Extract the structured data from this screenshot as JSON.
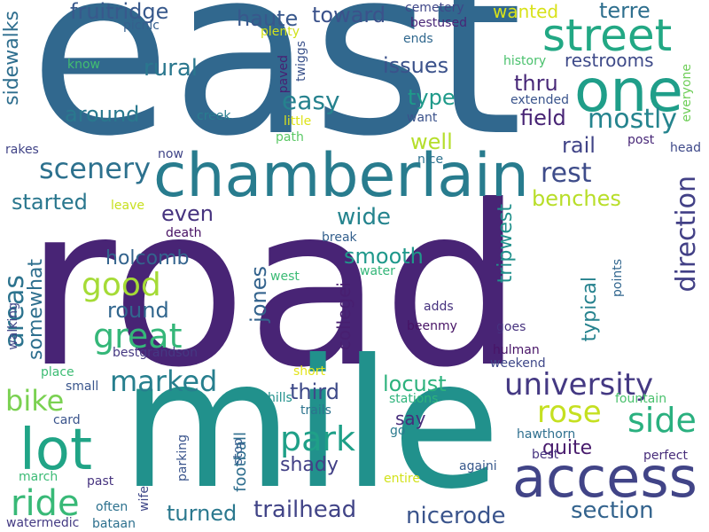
{
  "words": [
    {
      "text": "road",
      "color": "#482475"
    },
    {
      "text": "east",
      "color": "#31688e"
    },
    {
      "text": "mile",
      "color": "#21918c"
    },
    {
      "text": "chamberlain",
      "color": "#287c8e"
    },
    {
      "text": "access",
      "color": "#414487"
    },
    {
      "text": "one",
      "color": "#1f9e89"
    },
    {
      "text": "street",
      "color": "#22a884"
    },
    {
      "text": "lot",
      "color": "#20a486"
    },
    {
      "text": "university",
      "color": "#443983"
    },
    {
      "text": "great",
      "color": "#35b779"
    },
    {
      "text": "good",
      "color": "#a5db36"
    },
    {
      "text": "park",
      "color": "#1fa088"
    },
    {
      "text": "ride",
      "color": "#38b977"
    },
    {
      "text": "side",
      "color": "#2ab07f"
    },
    {
      "text": "rose",
      "color": "#c5e021"
    },
    {
      "text": "scenery",
      "color": "#2d718e"
    },
    {
      "text": "marked",
      "color": "#277f8e"
    },
    {
      "text": "mostly",
      "color": "#25848e"
    },
    {
      "text": "rest",
      "color": "#3e4c8a"
    },
    {
      "text": "bike",
      "color": "#7ad151"
    },
    {
      "text": "areas",
      "color": "#2c738e"
    },
    {
      "text": "direction",
      "color": "#424086"
    },
    {
      "text": "section",
      "color": "#33638d"
    },
    {
      "text": "nicerode",
      "color": "#3a548c"
    },
    {
      "text": "trailhead",
      "color": "#414487"
    },
    {
      "text": "fruitridge",
      "color": "#38598c"
    },
    {
      "text": "haute",
      "color": "#38588c"
    },
    {
      "text": "toward",
      "color": "#3b528b"
    },
    {
      "text": "terre",
      "color": "#2e6f8e"
    },
    {
      "text": "wanted",
      "color": "#d8e219"
    },
    {
      "text": "rural",
      "color": "#2a778e"
    },
    {
      "text": "issues",
      "color": "#3b528b"
    },
    {
      "text": "restrooms",
      "color": "#3e4a89"
    },
    {
      "text": "easy",
      "color": "#26828e"
    },
    {
      "text": "type",
      "color": "#1f9a8a"
    },
    {
      "text": "thru",
      "color": "#482878"
    },
    {
      "text": "field",
      "color": "#482475"
    },
    {
      "text": "around",
      "color": "#2a788e"
    },
    {
      "text": "rail",
      "color": "#414487"
    },
    {
      "text": "well",
      "color": "#b5de2b"
    },
    {
      "text": "benches",
      "color": "#b8de29"
    },
    {
      "text": "wide",
      "color": "#25848e"
    },
    {
      "text": "started",
      "color": "#2a778e"
    },
    {
      "text": "even",
      "color": "#46337f"
    },
    {
      "text": "smooth",
      "color": "#1f988b"
    },
    {
      "text": "holcomb",
      "color": "#33638d"
    },
    {
      "text": "round",
      "color": "#31668e"
    },
    {
      "text": "jones",
      "color": "#33638d"
    },
    {
      "text": "sidewalks",
      "color": "#2e6e8e"
    },
    {
      "text": "somewhat",
      "color": "#2e6f8e"
    },
    {
      "text": "tripwest",
      "color": "#21918c"
    },
    {
      "text": "typical",
      "color": "#26828e"
    },
    {
      "text": "collegei",
      "color": "#481f70"
    },
    {
      "text": "third",
      "color": "#3e4a89"
    },
    {
      "text": "locust",
      "color": "#2db27d"
    },
    {
      "text": "say",
      "color": "#472d7b"
    },
    {
      "text": "quite",
      "color": "#481b6d"
    },
    {
      "text": "shady",
      "color": "#424086"
    },
    {
      "text": "football",
      "color": "#2e6e8e"
    },
    {
      "text": "turned",
      "color": "#2a788e"
    },
    {
      "text": "picnic",
      "color": "#355f8d"
    },
    {
      "text": "plenty",
      "color": "#d0e11c"
    },
    {
      "text": "twiggs",
      "color": "#3b528b"
    },
    {
      "text": "paved",
      "color": "#482173"
    },
    {
      "text": "cemetery",
      "color": "#3f4788"
    },
    {
      "text": "bestused",
      "color": "#482677"
    },
    {
      "text": "ends",
      "color": "#30688e"
    },
    {
      "text": "history",
      "color": "#4ac16d"
    },
    {
      "text": "everyone",
      "color": "#6ece58"
    },
    {
      "text": "know",
      "color": "#42be71"
    },
    {
      "text": "creek",
      "color": "#287d8e"
    },
    {
      "text": "little",
      "color": "#dde318"
    },
    {
      "text": "want",
      "color": "#3b528b"
    },
    {
      "text": "extended",
      "color": "#3a548c"
    },
    {
      "text": "path",
      "color": "#5ac864"
    },
    {
      "text": "post",
      "color": "#482878"
    },
    {
      "text": "head",
      "color": "#3e4989"
    },
    {
      "text": "nice",
      "color": "#2d718e"
    },
    {
      "text": "now",
      "color": "#404588"
    },
    {
      "text": "rakes",
      "color": "#414487"
    },
    {
      "text": "leave",
      "color": "#c8e020"
    },
    {
      "text": "death",
      "color": "#471063"
    },
    {
      "text": "break",
      "color": "#34608d"
    },
    {
      "text": "water",
      "color": "#34b679"
    },
    {
      "text": "west",
      "color": "#3bbb75"
    },
    {
      "text": "points",
      "color": "#31668e"
    },
    {
      "text": "walking",
      "color": "#404688"
    },
    {
      "text": "adds",
      "color": "#46327e"
    },
    {
      "text": "beenmy",
      "color": "#471365"
    },
    {
      "text": "goes",
      "color": "#46327e"
    },
    {
      "text": "bestgrandson",
      "color": "#453882"
    },
    {
      "text": "hulman",
      "color": "#481467"
    },
    {
      "text": "weekend",
      "color": "#3f4889"
    },
    {
      "text": "place",
      "color": "#3dbc74"
    },
    {
      "text": "short",
      "color": "#e2e418"
    },
    {
      "text": "small",
      "color": "#39558c"
    },
    {
      "text": "hills",
      "color": "#21918c"
    },
    {
      "text": "stations",
      "color": "#2fb47c"
    },
    {
      "text": "fountain",
      "color": "#4ac16d"
    },
    {
      "text": "card",
      "color": "#3a548c"
    },
    {
      "text": "trails",
      "color": "#2c738e"
    },
    {
      "text": "go",
      "color": "#297a8e"
    },
    {
      "text": "hawthorn",
      "color": "#2e6f8e"
    },
    {
      "text": "stop",
      "color": "#365d8d"
    },
    {
      "text": "againi",
      "color": "#38598c"
    },
    {
      "text": "best",
      "color": "#46337f"
    },
    {
      "text": "perfect",
      "color": "#472c7a"
    },
    {
      "text": "parking",
      "color": "#3a548c"
    },
    {
      "text": "march",
      "color": "#3bbb75"
    },
    {
      "text": "past",
      "color": "#46337f"
    },
    {
      "text": "entire",
      "color": "#d2e21b"
    },
    {
      "text": "wife",
      "color": "#3f4788"
    },
    {
      "text": "often",
      "color": "#2c718e"
    },
    {
      "text": "watermedic",
      "color": "#443a83"
    },
    {
      "text": "bataan",
      "color": "#2d708e"
    }
  ]
}
